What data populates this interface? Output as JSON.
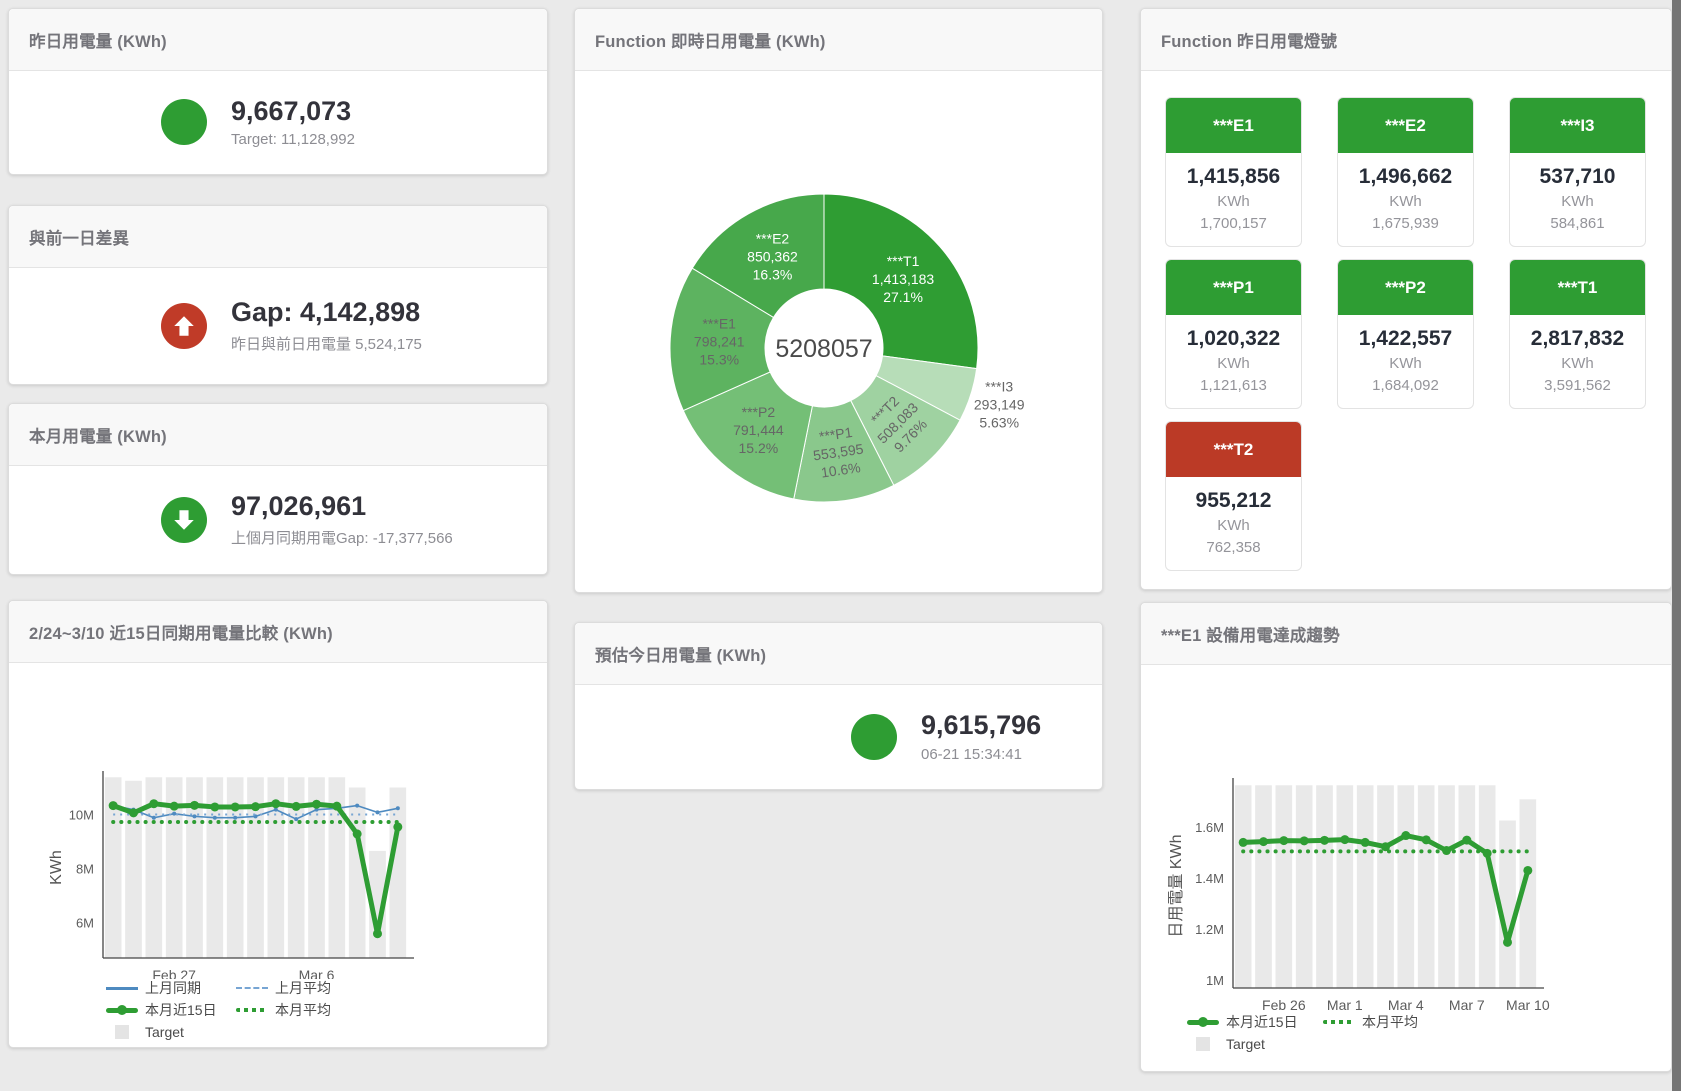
{
  "page": {
    "background": "#eaeaea",
    "accent_green": "#2e9d33",
    "accent_red": "#c03b28",
    "scrollbar_color": "#757575"
  },
  "cards": {
    "yesterday": {
      "title": "昨日用電量 (KWh)",
      "value": "9,667,073",
      "sub": "Target: 11,128,992",
      "status_color": "#2e9d33"
    },
    "day_gap": {
      "title": "與前一日差異",
      "value": "Gap: 4,142,898",
      "sub": "昨日與前日用電量 5,524,175",
      "status_color": "#c03b28",
      "icon": "arrow-up"
    },
    "month": {
      "title": "本月用電量 (KWh)",
      "value": "97,026,961",
      "sub": "上個月同期用電Gap: -17,377,566",
      "status_color": "#2e9d33",
      "icon": "arrow-down"
    },
    "today_estimate": {
      "title": "預估今日用電量 (KWh)",
      "value": "9,615,796",
      "sub": "06-21 15:34:41",
      "status_color": "#2e9d33"
    },
    "lights": {
      "title": "Function 昨日用電燈號",
      "unit": "KWh",
      "tiles": [
        {
          "label": "***E1",
          "value": "1,415,856",
          "target": "1,700,157",
          "color": "#2e9d33",
          "status": "green"
        },
        {
          "label": "***E2",
          "value": "1,496,662",
          "target": "1,675,939",
          "color": "#2e9d33",
          "status": "green"
        },
        {
          "label": "***I3",
          "value": "537,710",
          "target": "584,861",
          "color": "#2e9d33",
          "status": "green"
        },
        {
          "label": "***P1",
          "value": "1,020,322",
          "target": "1,121,613",
          "color": "#2e9d33",
          "status": "green"
        },
        {
          "label": "***P2",
          "value": "1,422,557",
          "target": "1,684,092",
          "color": "#2e9d33",
          "status": "green"
        },
        {
          "label": "***T1",
          "value": "2,817,832",
          "target": "3,591,562",
          "color": "#2e9d33",
          "status": "green"
        },
        {
          "label": "***T2",
          "value": "955,212",
          "target": "762,358",
          "color": "#bb3a26",
          "status": "red"
        }
      ]
    }
  },
  "chart_data": [
    {
      "id": "donut",
      "type": "pie",
      "title": "Function 即時日用電量 (KWh)",
      "center_total": "5208057",
      "slices": [
        {
          "name": "***T1",
          "value": 1413183,
          "display": "1,413,183",
          "pct": "27.1%",
          "color": "#2f9d33",
          "label_color": "#ffffff"
        },
        {
          "name": "***I3",
          "value": 293149,
          "display": "293,149",
          "pct": "5.63%",
          "color": "#b7ddb8",
          "label_color": "#666666",
          "outside": true
        },
        {
          "name": "***T2",
          "value": 508083,
          "display": "508,083",
          "pct": "9.76%",
          "color": "#9fd2a1",
          "label_color": "#666666",
          "rotate": -45
        },
        {
          "name": "***P1",
          "value": 553595,
          "display": "553,595",
          "pct": "10.6%",
          "color": "#8ac88c",
          "label_color": "#666666",
          "rotate": -8
        },
        {
          "name": "***P2",
          "value": 791444,
          "display": "791,444",
          "pct": "15.2%",
          "color": "#74bf76",
          "label_color": "#666666"
        },
        {
          "name": "***E1",
          "value": 798241,
          "display": "798,241",
          "pct": "15.3%",
          "color": "#5db360",
          "label_color": "#666666"
        },
        {
          "name": "***E2",
          "value": 850362,
          "display": "850,362",
          "pct": "16.3%",
          "color": "#47a84b",
          "label_color": "#ffffff"
        }
      ]
    },
    {
      "id": "compare15",
      "type": "line",
      "title": "2/24~3/10 近15日同期用電量比較 (KWh)",
      "ylabel": "KWh",
      "ylim": [
        4700000,
        11410000
      ],
      "yticks": [
        {
          "v": 6000000,
          "label": "6M"
        },
        {
          "v": 8000000,
          "label": "8M"
        },
        {
          "v": 10000000,
          "label": "10M"
        }
      ],
      "xticks": [
        {
          "i": 3,
          "label": "Feb 27"
        },
        {
          "i": 10,
          "label": "Mar 6"
        }
      ],
      "target": {
        "name": "Target",
        "color": "#e9e9e9",
        "values": [
          11400000,
          11270000,
          11400000,
          11400000,
          11400000,
          11400000,
          11400000,
          11400000,
          11400000,
          11400000,
          11400000,
          11400000,
          11020000,
          8670000,
          11020000
        ]
      },
      "series": [
        {
          "name": "上月同期",
          "color": "#4e8ac0",
          "width": 1.6,
          "marker": 2,
          "values": [
            10350000,
            10200000,
            9900000,
            10050000,
            9950000,
            9900000,
            9900000,
            9950000,
            10200000,
            9850000,
            10200000,
            10250000,
            10350000,
            10100000,
            10250000
          ]
        },
        {
          "name": "上月平均",
          "color": "#77a5d3",
          "width": 2,
          "dash": "2 5",
          "values": [
            10020000,
            10020000,
            10020000,
            10020000,
            10020000,
            10020000,
            10020000,
            10020000,
            10020000,
            10020000,
            10020000,
            10020000,
            10020000,
            10020000,
            10020000
          ]
        },
        {
          "name": "本月平均",
          "color": "#2e9d33",
          "width": 4,
          "dash": "0.1 8",
          "cap": "round",
          "values": [
            9740000,
            9740000,
            9740000,
            9740000,
            9740000,
            9740000,
            9740000,
            9740000,
            9740000,
            9740000,
            9740000,
            9740000,
            9740000,
            9740000,
            9740000
          ]
        },
        {
          "name": "本月近15日",
          "color": "#2e9d33",
          "width": 5,
          "marker": 4.5,
          "values": [
            10350000,
            10080000,
            10420000,
            10330000,
            10360000,
            10300000,
            10300000,
            10310000,
            10420000,
            10320000,
            10400000,
            10330000,
            9300000,
            5600000,
            9560000
          ]
        }
      ],
      "legend_rows": [
        [
          {
            "t": "line",
            "c": "#4e8ac0",
            "label": "上月同期"
          },
          {
            "t": "dash",
            "c": "#77a5d3",
            "label": "上月平均"
          }
        ],
        [
          {
            "t": "thick",
            "c": "#2e9d33",
            "label": "本月近15日"
          },
          {
            "t": "dots",
            "c": "#2e9d33",
            "label": "本月平均"
          }
        ],
        [
          {
            "t": "box",
            "c": "#e4e4e4",
            "label": "Target"
          }
        ]
      ]
    },
    {
      "id": "e1trend",
      "type": "line",
      "title": "***E1 設備用電達成趨勢",
      "ylabel": "日用電量 KWh",
      "ylim": [
        970000,
        1770000
      ],
      "yticks": [
        {
          "v": 1000000,
          "label": "1M"
        },
        {
          "v": 1200000,
          "label": "1.2M"
        },
        {
          "v": 1400000,
          "label": "1.4M"
        },
        {
          "v": 1600000,
          "label": "1.6M"
        }
      ],
      "xticks": [
        {
          "i": 2,
          "label": "Feb 26"
        },
        {
          "i": 5,
          "label": "Mar 1"
        },
        {
          "i": 8,
          "label": "Mar 4"
        },
        {
          "i": 11,
          "label": "Mar 7"
        },
        {
          "i": 14,
          "label": "Mar 10"
        }
      ],
      "target": {
        "name": "Target",
        "color": "#e9e9e9",
        "values": [
          1765000,
          1765000,
          1765000,
          1765000,
          1765000,
          1765000,
          1765000,
          1765000,
          1765000,
          1765000,
          1765000,
          1765000,
          1765000,
          1627000,
          1710000
        ]
      },
      "series": [
        {
          "name": "本月平均",
          "color": "#2e9d33",
          "width": 4,
          "dash": "0.1 8",
          "cap": "round",
          "values": [
            1506000,
            1506000,
            1506000,
            1506000,
            1506000,
            1506000,
            1506000,
            1506000,
            1506000,
            1506000,
            1506000,
            1506000,
            1506000,
            1506000,
            1506000
          ]
        },
        {
          "name": "本月近15日",
          "color": "#2e9d33",
          "width": 5,
          "marker": 4.5,
          "values": [
            1541000,
            1544000,
            1548000,
            1547000,
            1549000,
            1552000,
            1541000,
            1524000,
            1568000,
            1551000,
            1509000,
            1550000,
            1498000,
            1149000,
            1431000
          ]
        }
      ],
      "legend_rows": [
        [
          {
            "t": "thick",
            "c": "#2e9d33",
            "label": "本月近15日"
          },
          {
            "t": "dots",
            "c": "#2e9d33",
            "label": "本月平均"
          }
        ],
        [
          {
            "t": "box",
            "c": "#e4e4e4",
            "label": "Target"
          }
        ]
      ]
    }
  ]
}
